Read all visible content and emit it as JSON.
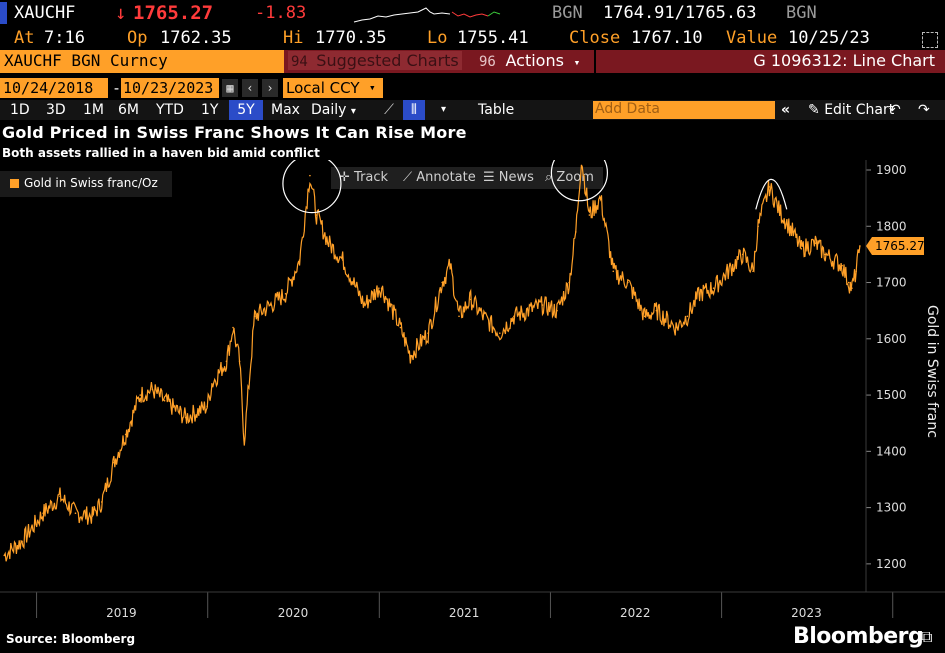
{
  "quote": {
    "ticker": "XAUCHF",
    "last": "1765.27",
    "change": "-1.83",
    "source1": "BGN",
    "bid_ask": "1764.91/1765.63",
    "source2": "BGN",
    "at_label": "At",
    "time": "7:16",
    "op_label": "Op",
    "open": "1762.35",
    "hi_label": "Hi",
    "high": "1770.35",
    "lo_label": "Lo",
    "low": "1755.41",
    "close_label": "Close",
    "close": "1767.10",
    "value_label": "Value",
    "value_date": "10/25/23"
  },
  "security_bar": {
    "security": "XAUCHF BGN Curncy",
    "suggested": "Suggested Charts",
    "suggested_num": "94",
    "actions_num": "96",
    "actions": "Actions",
    "chart_id": "G 1096312: Line Chart"
  },
  "date_range": {
    "start": "10/24/2018",
    "sep": "-",
    "end": "10/23/2023",
    "currency": "Local CCY"
  },
  "toolbar": {
    "ranges": [
      "1D",
      "3D",
      "1M",
      "6M",
      "YTD",
      "1Y",
      "5Y",
      "Max"
    ],
    "selected": "5Y",
    "period": "Daily",
    "table": "Table",
    "add_data_placeholder": "Add Data",
    "edit_chart": "Edit Chart"
  },
  "chart_tools": {
    "track": "Track",
    "annotate": "Annotate",
    "news": "News",
    "zoom": "Zoom"
  },
  "header": {
    "title": "Gold Priced in Swiss Franc Shows It Can Rise More",
    "subtitle": "Both assets rallied in a haven bid amid conflict"
  },
  "footer": {
    "source": "Source: Bloomberg",
    "brand": "Bloomberg"
  },
  "colors": {
    "accent": "#ffa028",
    "negative": "#ff3b3b",
    "bar": "#7a1820",
    "selected": "#2b4cc8"
  },
  "chart_data": {
    "type": "line",
    "title": "Gold Priced in Swiss Franc Shows It Can Rise More",
    "subtitle": "Both assets rallied in a haven bid amid conflict",
    "ylabel": "Gold in Swiss franc",
    "xlabel": "",
    "ylim": [
      1150,
      1900
    ],
    "yticks": [
      1200,
      1300,
      1400,
      1500,
      1600,
      1700,
      1800,
      1900
    ],
    "xticks": [
      "2019",
      "2020",
      "2021",
      "2022",
      "2023"
    ],
    "last_value_label": "1765.27",
    "legend": "top-left",
    "grid": false,
    "series": [
      {
        "name": "Gold in Swiss franc/Oz",
        "color": "#ffa028",
        "x": [
          "2018-10-24",
          "2018-12-01",
          "2019-01-15",
          "2019-02-20",
          "2019-03-25",
          "2019-04-30",
          "2019-05-20",
          "2019-06-15",
          "2019-07-10",
          "2019-08-10",
          "2019-09-05",
          "2019-10-01",
          "2019-11-15",
          "2019-12-31",
          "2020-01-10",
          "2020-02-10",
          "2020-02-24",
          "2020-03-09",
          "2020-03-19",
          "2020-04-10",
          "2020-05-15",
          "2020-06-15",
          "2020-07-15",
          "2020-08-06",
          "2020-08-20",
          "2020-09-15",
          "2020-10-15",
          "2020-11-30",
          "2020-12-31",
          "2021-01-06",
          "2021-02-15",
          "2021-03-08",
          "2021-04-15",
          "2021-05-15",
          "2021-06-01",
          "2021-06-20",
          "2021-07-15",
          "2021-08-10",
          "2021-09-15",
          "2021-10-15",
          "2021-11-15",
          "2021-12-15",
          "2022-01-15",
          "2022-02-10",
          "2022-02-24",
          "2022-03-08",
          "2022-03-25",
          "2022-04-18",
          "2022-05-15",
          "2022-06-15",
          "2022-07-21",
          "2022-08-15",
          "2022-09-26",
          "2022-10-20",
          "2022-11-15",
          "2022-12-15",
          "2023-01-15",
          "2023-02-15",
          "2023-03-09",
          "2023-03-20",
          "2023-04-13",
          "2023-05-03",
          "2023-06-01",
          "2023-06-20",
          "2023-07-20",
          "2023-08-10",
          "2023-09-15",
          "2023-09-29",
          "2023-10-06",
          "2023-10-15",
          "2023-10-23"
        ],
        "values": [
          1215,
          1240,
          1290,
          1320,
          1290,
          1285,
          1310,
          1380,
          1430,
          1500,
          1510,
          1490,
          1460,
          1480,
          1520,
          1560,
          1620,
          1560,
          1420,
          1640,
          1660,
          1680,
          1740,
          1890,
          1820,
          1770,
          1740,
          1660,
          1690,
          1690,
          1620,
          1570,
          1610,
          1700,
          1730,
          1640,
          1670,
          1640,
          1610,
          1640,
          1650,
          1660,
          1650,
          1700,
          1790,
          1920,
          1820,
          1850,
          1720,
          1700,
          1640,
          1650,
          1620,
          1640,
          1680,
          1690,
          1720,
          1750,
          1720,
          1800,
          1870,
          1830,
          1790,
          1760,
          1770,
          1750,
          1730,
          1700,
          1690,
          1720,
          1765
        ]
      }
    ],
    "annotations": [
      "circle-2020-peak",
      "circle-2022-peak",
      "arc-2023-peak"
    ]
  }
}
